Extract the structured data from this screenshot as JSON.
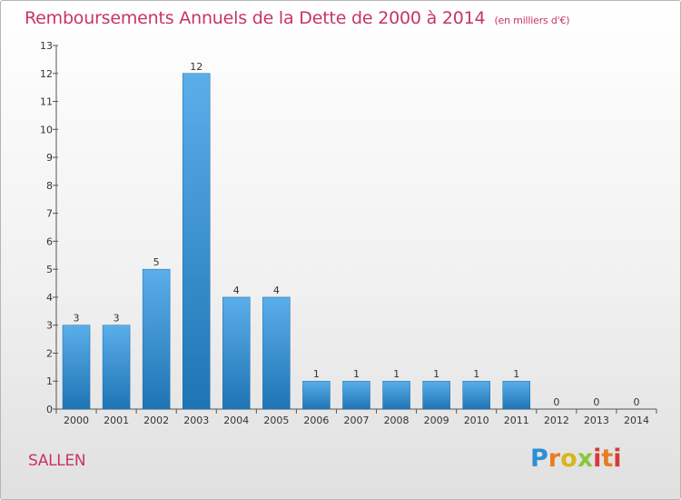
{
  "header": {
    "title": "Remboursements Annuels de la Dette de 2000 à 2014",
    "unit": "(en milliers d'€)"
  },
  "footer": {
    "city": "SALLEN",
    "logo_text": "Proxiti"
  },
  "colors": {
    "accent": "#c8336b",
    "bar_top": "#5aaeea",
    "bar_bottom": "#1f74b4"
  },
  "chart_data": {
    "type": "bar",
    "categories": [
      "2000",
      "2001",
      "2002",
      "2003",
      "2004",
      "2005",
      "2006",
      "2007",
      "2008",
      "2009",
      "2010",
      "2011",
      "2012",
      "2013",
      "2014"
    ],
    "values": [
      3,
      3,
      5,
      12,
      4,
      4,
      1,
      1,
      1,
      1,
      1,
      1,
      0,
      0,
      0
    ],
    "ylim": [
      0,
      13
    ],
    "yticks": [
      0,
      1,
      2,
      3,
      4,
      5,
      6,
      7,
      8,
      9,
      10,
      11,
      12,
      13
    ],
    "grid": false,
    "legend": "none"
  }
}
